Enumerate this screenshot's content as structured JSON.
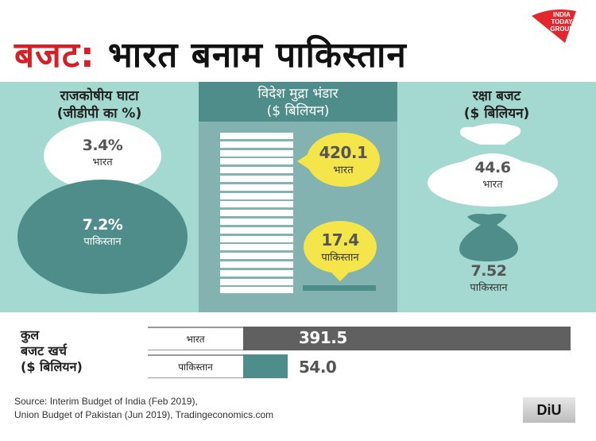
{
  "header": {
    "title_red": "बजट:",
    "title_black": "भारत बनाम पाकिस्तान",
    "logo": {
      "lines": [
        "INDIA",
        "TODAY",
        "GROUP"
      ],
      "color": "#e0282e"
    }
  },
  "panels": {
    "fiscal_deficit": {
      "title": "राजकोषीय घाटा",
      "subtitle": "(जीडीपी का %)",
      "india": {
        "value": "3.4%",
        "label": "भारत"
      },
      "pakistan": {
        "value": "7.2%",
        "label": "पाकिस्तान"
      }
    },
    "forex_reserves": {
      "title": "विदेश मुद्रा भंडार",
      "subtitle": "($ बिलियन)",
      "india": {
        "value": "420.1",
        "label": "भारत"
      },
      "pakistan": {
        "value": "17.4",
        "label": "पाकिस्तान"
      }
    },
    "defence_budget": {
      "title": "रक्षा बजट",
      "subtitle": "($ बिलियन)",
      "india": {
        "value": "44.6",
        "label": "भारत"
      },
      "pakistan": {
        "value": "7.52",
        "label": "पाकिस्तान"
      }
    }
  },
  "total_budget": {
    "label_line1": "कुल",
    "label_line2": "बजट खर्च",
    "label_line3": "($ बिलियन)",
    "rows": [
      {
        "country": "भारत",
        "value": "391.5",
        "color": "#606060"
      },
      {
        "country": "पाकिस्तान",
        "value": "54.0",
        "color": "#4e8d8a"
      }
    ]
  },
  "footer": {
    "source_line1": "Source: Interim Budget of India (Feb 2019),",
    "source_line2": "Union Budget of Pakistan (Jun 2019), Tradingeconomics.com",
    "diu_logo": "DiU"
  },
  "colors": {
    "accent_red": "#d62027",
    "teal_light": "#a3d9d0",
    "teal_mid": "#82b3b1",
    "teal_dark": "#4e8d8a",
    "yellow": "#f4e54a",
    "grey_bar": "#606060"
  },
  "chart_data": {
    "type": "table",
    "title": "बजट: भारत बनाम पाकिस्तान",
    "categories": [
      "राजकोषीय घाटा (जीडीपी का %)",
      "विदेश मुद्रा भंडार ($ बिलियन)",
      "रक्षा बजट ($ बिलियन)",
      "कुल बजट खर्च ($ बिलियन)"
    ],
    "series": [
      {
        "name": "भारत",
        "values": [
          3.4,
          420.1,
          44.6,
          391.5
        ]
      },
      {
        "name": "पाकिस्तान",
        "values": [
          7.2,
          17.4,
          7.52,
          54.0
        ]
      }
    ]
  }
}
